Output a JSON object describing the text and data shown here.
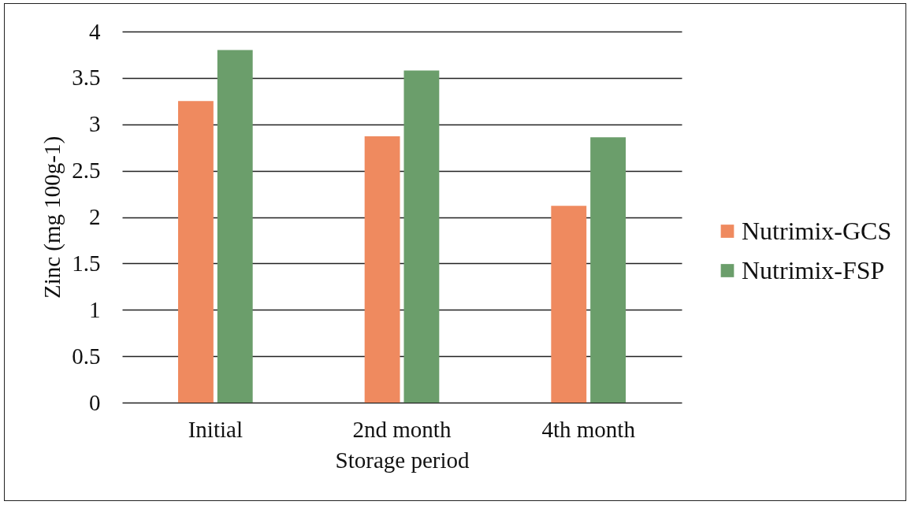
{
  "chart_data": {
    "type": "bar",
    "xlabel": "Storage period",
    "ylabel": "Zinc (mg 100g-1)",
    "categories": [
      "Initial",
      "2nd month",
      "4th month"
    ],
    "series": [
      {
        "name": "Nutrimix-GCS",
        "color": "#ef8a5f",
        "values": [
          3.25,
          2.87,
          2.12
        ]
      },
      {
        "name": "Nutrimix-FSP",
        "color": "#6b9e6b",
        "values": [
          3.8,
          3.58,
          2.86
        ]
      }
    ],
    "ylim": [
      0,
      4
    ],
    "yticks": [
      0,
      0.5,
      1,
      1.5,
      2,
      2.5,
      3,
      3.5,
      4
    ],
    "grid": "y",
    "legend": "right"
  }
}
